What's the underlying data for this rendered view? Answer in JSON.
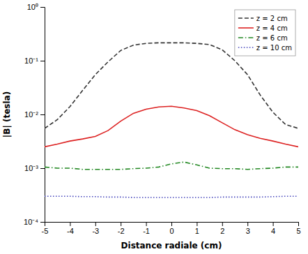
{
  "chart_data": {
    "type": "line",
    "xlabel": "Distance radiale (cm)",
    "ylabel": "|B| (tesla)",
    "x": [
      -5.0,
      -4.5,
      -4.0,
      -3.5,
      -3.0,
      -2.5,
      -2.0,
      -1.5,
      -1.0,
      -0.5,
      0.0,
      0.5,
      1.0,
      1.5,
      2.0,
      2.5,
      3.0,
      3.5,
      4.0,
      4.5,
      5.0
    ],
    "series": [
      {
        "name": "z = 2 cm",
        "color": "#333333",
        "line_style": "dashed",
        "values": [
          0.0055,
          0.008,
          0.014,
          0.028,
          0.055,
          0.095,
          0.155,
          0.195,
          0.21,
          0.215,
          0.215,
          0.215,
          0.21,
          0.2,
          0.16,
          0.1,
          0.055,
          0.023,
          0.011,
          0.0065,
          0.0055
        ]
      },
      {
        "name": "z = 4 cm",
        "color": "#dd2222",
        "line_style": "solid",
        "values": [
          0.0025,
          0.0028,
          0.0032,
          0.0035,
          0.0039,
          0.005,
          0.0075,
          0.0105,
          0.0125,
          0.0138,
          0.0142,
          0.0132,
          0.0118,
          0.0095,
          0.007,
          0.0052,
          0.0042,
          0.0036,
          0.0032,
          0.0028,
          0.0025
        ]
      },
      {
        "name": "z = 6 cm",
        "color": "#228822",
        "line_style": "dashdot",
        "values": [
          0.00105,
          0.001,
          0.001,
          0.00095,
          0.00095,
          0.00095,
          0.00095,
          0.00098,
          0.001,
          0.00105,
          0.0012,
          0.0013,
          0.00115,
          0.001,
          0.00098,
          0.00098,
          0.00095,
          0.00098,
          0.001,
          0.00105,
          0.00105
        ]
      },
      {
        "name": "z = 10 cm",
        "color": "#4444bb",
        "line_style": "dotted",
        "values": [
          0.0003,
          0.0003,
          0.0003,
          0.000295,
          0.000295,
          0.00029,
          0.00029,
          0.000285,
          0.000285,
          0.000285,
          0.000285,
          0.000285,
          0.000285,
          0.000285,
          0.00029,
          0.00029,
          0.00029,
          0.00029,
          0.000295,
          0.0003,
          0.0003
        ]
      }
    ],
    "xlim": [
      -5,
      5
    ],
    "ylim": [
      0.0001,
      1
    ],
    "xticks": [
      -5,
      -4,
      -3,
      -2,
      -1,
      0,
      1,
      2,
      3,
      4,
      5
    ],
    "yticks": [
      {
        "value": 0.0001,
        "label": "10⁻⁴"
      },
      {
        "value": 0.001,
        "label": "10⁻³"
      },
      {
        "value": 0.01,
        "label": "10⁻²"
      },
      {
        "value": 0.1,
        "label": "10⁻¹"
      },
      {
        "value": 1,
        "label": "10⁰"
      }
    ],
    "log": "y",
    "grid": false,
    "legend": "upper right"
  }
}
